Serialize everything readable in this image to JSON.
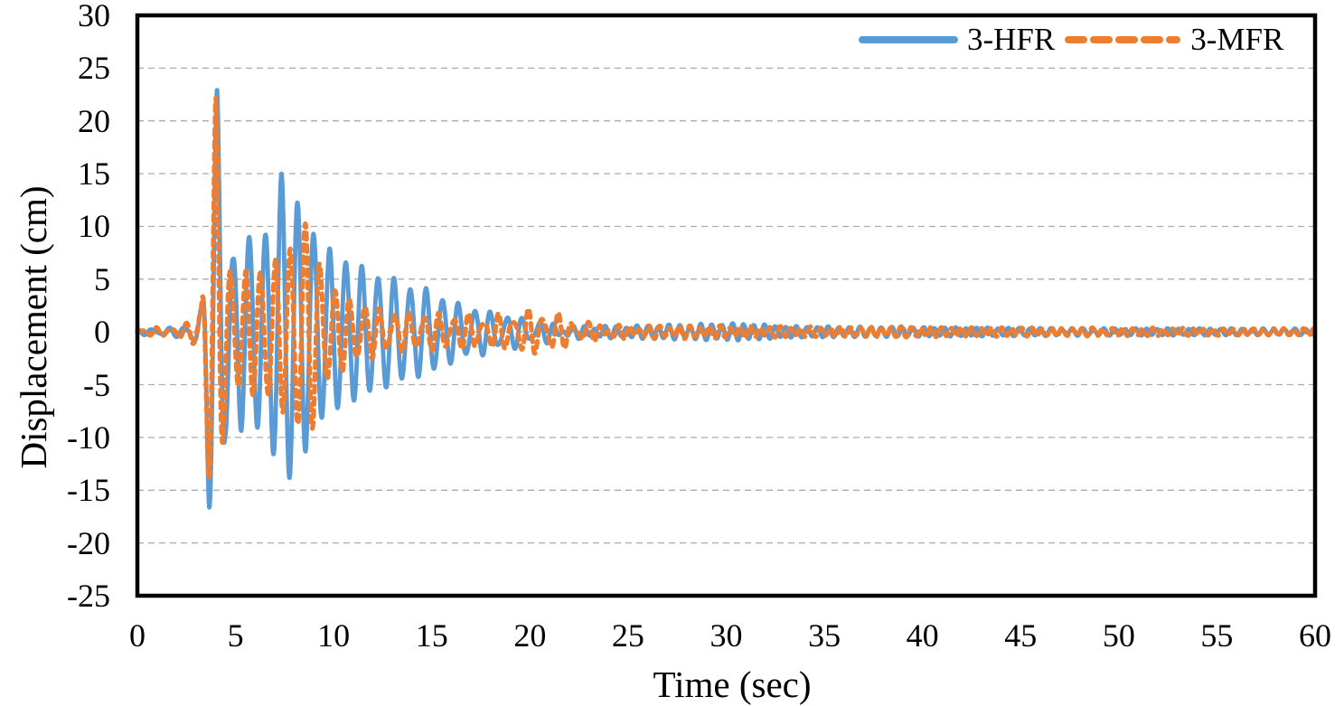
{
  "chart_data": {
    "type": "line",
    "title": "",
    "xlabel": "Time (sec)",
    "ylabel": "Displacement (cm)",
    "xlim": [
      0,
      60
    ],
    "ylim": [
      -25,
      30
    ],
    "x_ticks": [
      0,
      5,
      10,
      15,
      20,
      25,
      30,
      35,
      40,
      45,
      50,
      55,
      60
    ],
    "y_ticks": [
      30,
      25,
      20,
      15,
      10,
      5,
      0,
      -5,
      -10,
      -15,
      -20,
      -25
    ],
    "grid": "horizontal-dashed",
    "grid_color": "#ababab",
    "axis_border_color": "#000000",
    "background": "#ffffff",
    "legend": {
      "position": "top-right-inside",
      "items": [
        {
          "label": "3-HFR",
          "color": "#5B9BD5",
          "style": "solid"
        },
        {
          "label": "3-MFR",
          "color": "#ED7D31",
          "style": "dashed"
        }
      ]
    },
    "series": [
      {
        "name": "3-HFR",
        "color": "#5B9BD5",
        "line_style": "solid",
        "stroke_width": 4.8,
        "observed_extrema": [
          {
            "t": 3.65,
            "y": -16.3
          },
          {
            "t": 4.06,
            "y": 23.3
          },
          {
            "t": 5.7,
            "y": 9.4
          },
          {
            "t": 7.34,
            "y": 15.4
          },
          {
            "t": 7.75,
            "y": -13.9
          },
          {
            "t": 8.16,
            "y": 11.9
          },
          {
            "t": 30.5,
            "y": 0.8
          },
          {
            "t": 60,
            "y": 0.3
          }
        ],
        "model": {
          "sample_dt": 0.015,
          "components": [
            {
              "freq_hz": 1.22,
              "phase_rad": 1.864,
              "envelope": [
                [
                  0,
                  0.15
                ],
                [
                  0.8,
                  0.25
                ],
                [
                  1.6,
                  0.3
                ],
                [
                  2.4,
                  0.45
                ],
                [
                  3.0,
                  1.1
                ],
                [
                  3.3,
                  2.2
                ],
                [
                  3.65,
                  16.3
                ],
                [
                  4.06,
                  23.6
                ],
                [
                  4.47,
                  10.2
                ],
                [
                  4.88,
                  6.4
                ],
                [
                  5.29,
                  9.2
                ],
                [
                  5.7,
                  9.4
                ],
                [
                  6.11,
                  9.2
                ],
                [
                  6.52,
                  8.8
                ],
                [
                  6.93,
                  11.5
                ],
                [
                  7.34,
                  15.4
                ],
                [
                  7.75,
                  13.9
                ],
                [
                  8.16,
                  11.9
                ],
                [
                  8.57,
                  11.3
                ],
                [
                  8.98,
                  9.6
                ],
                [
                  9.39,
                  8.1
                ],
                [
                  9.8,
                  7.6
                ],
                [
                  10.6,
                  6.9
                ],
                [
                  11.4,
                  6.0
                ],
                [
                  12.2,
                  5.4
                ],
                [
                  13,
                  4.9
                ],
                [
                  14,
                  4.2
                ],
                [
                  15,
                  3.8
                ],
                [
                  16,
                  2.7
                ],
                [
                  17,
                  2.2
                ],
                [
                  18,
                  1.7
                ],
                [
                  19,
                  1.3
                ],
                [
                  20,
                  1.0
                ],
                [
                  21,
                  0.6
                ],
                [
                  22,
                  0.25
                ],
                [
                  24,
                  0.12
                ],
                [
                  28,
                  0.1
                ],
                [
                  34,
                  0.06
                ],
                [
                  60,
                  0.03
                ]
              ]
            },
            {
              "freq_hz": 1.85,
              "phase_rad": 0.9,
              "envelope": [
                [
                  0,
                  0.1
                ],
                [
                  2,
                  0.12
                ],
                [
                  3.5,
                  0.3
                ],
                [
                  4,
                  0.6
                ],
                [
                  6,
                  0.4
                ],
                [
                  10,
                  0.3
                ],
                [
                  15,
                  0.3
                ],
                [
                  20,
                  0.4
                ],
                [
                  25,
                  0.5
                ],
                [
                  29,
                  0.7
                ],
                [
                  31,
                  0.75
                ],
                [
                  33,
                  0.5
                ],
                [
                  36,
                  0.45
                ],
                [
                  40,
                  0.4
                ],
                [
                  45,
                  0.35
                ],
                [
                  50,
                  0.3
                ],
                [
                  55,
                  0.3
                ],
                [
                  60,
                  0.28
                ]
              ]
            }
          ]
        }
      },
      {
        "name": "3-MFR",
        "color": "#ED7D31",
        "line_style": "dashed",
        "stroke_width": 5.2,
        "observed_extrema": [
          {
            "t": 3.62,
            "y": -13.6
          },
          {
            "t": 4.0,
            "y": 22.0
          },
          {
            "t": 8.66,
            "y": 10.4
          },
          {
            "t": 20.5,
            "y": 1.8
          },
          {
            "t": 60,
            "y": 0.3
          }
        ],
        "model": {
          "sample_dt": 0.015,
          "components": [
            {
              "freq_hz": 1.32,
              "phase_rad": -0.19,
              "envelope": [
                [
                  0,
                  0.15
                ],
                [
                  0.8,
                  0.28
                ],
                [
                  1.6,
                  0.35
                ],
                [
                  2.4,
                  0.55
                ],
                [
                  3.0,
                  1.2
                ],
                [
                  3.25,
                  2.3
                ],
                [
                  3.62,
                  13.6
                ],
                [
                  4.0,
                  21.8
                ],
                [
                  4.38,
                  9.2
                ],
                [
                  4.76,
                  6.0
                ],
                [
                  5.3,
                  5.2
                ],
                [
                  5.9,
                  5.6
                ],
                [
                  6.5,
                  6.1
                ],
                [
                  7.1,
                  6.6
                ],
                [
                  7.7,
                  7.8
                ],
                [
                  8.2,
                  9.2
                ],
                [
                  8.66,
                  10.4
                ],
                [
                  9.1,
                  7.6
                ],
                [
                  9.5,
                  5.2
                ],
                [
                  10.1,
                  3.8
                ],
                [
                  10.8,
                  3.0
                ],
                [
                  11.6,
                  2.4
                ],
                [
                  12.5,
                  1.9
                ],
                [
                  13.5,
                  1.6
                ],
                [
                  15,
                  1.5
                ],
                [
                  16.5,
                  1.4
                ],
                [
                  18,
                  1.2
                ],
                [
                  19.3,
                  1.5
                ],
                [
                  20.3,
                  1.7
                ],
                [
                  21.2,
                  1.5
                ],
                [
                  22,
                  1.0
                ],
                [
                  23,
                  0.5
                ],
                [
                  24.5,
                  0.25
                ],
                [
                  27,
                  0.15
                ],
                [
                  32,
                  0.1
                ],
                [
                  40,
                  0.06
                ],
                [
                  60,
                  0.04
                ]
              ]
            },
            {
              "freq_hz": 1.95,
              "phase_rad": 2.4,
              "envelope": [
                [
                  0,
                  0.1
                ],
                [
                  2,
                  0.14
                ],
                [
                  3.5,
                  0.3
                ],
                [
                  4,
                  0.6
                ],
                [
                  6,
                  0.5
                ],
                [
                  9,
                  0.4
                ],
                [
                  12,
                  0.35
                ],
                [
                  15,
                  0.35
                ],
                [
                  18,
                  0.45
                ],
                [
                  20,
                  0.6
                ],
                [
                  22,
                  0.5
                ],
                [
                  25,
                  0.45
                ],
                [
                  28,
                  0.5
                ],
                [
                  30,
                  0.5
                ],
                [
                  34,
                  0.4
                ],
                [
                  38,
                  0.45
                ],
                [
                  42,
                  0.4
                ],
                [
                  46,
                  0.35
                ],
                [
                  50,
                  0.35
                ],
                [
                  55,
                  0.3
                ],
                [
                  60,
                  0.3
                ]
              ]
            }
          ]
        }
      }
    ]
  }
}
